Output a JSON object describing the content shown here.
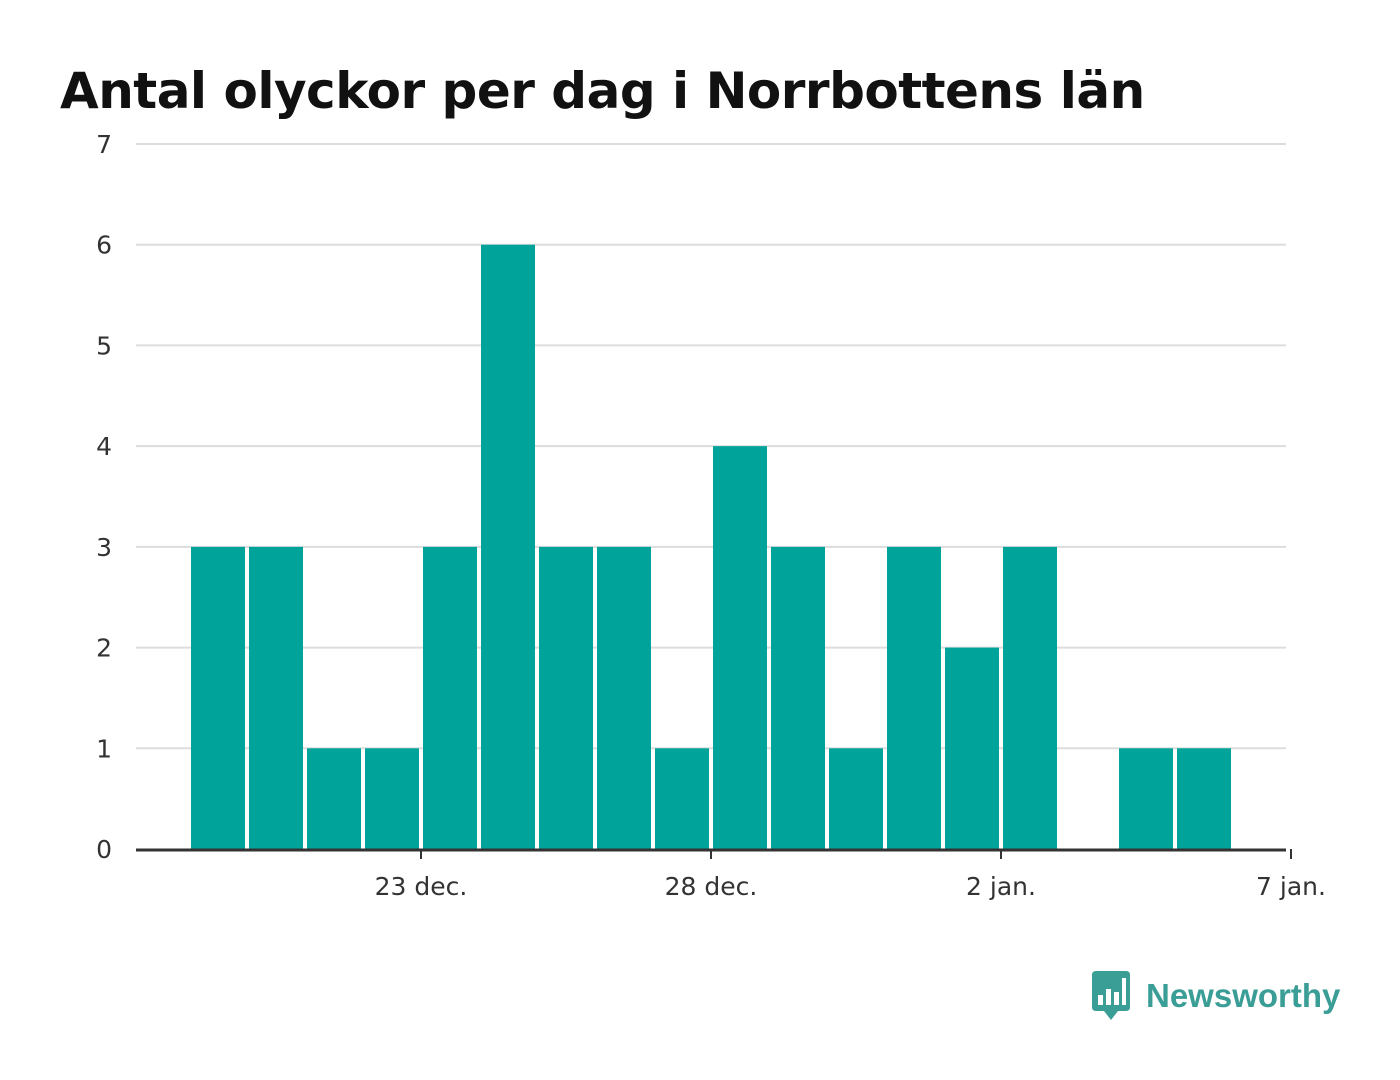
{
  "chart_data": {
    "type": "bar",
    "title": "Antal olyckor per dag i Norrbottens län",
    "x": [
      "2023-12-19",
      "2023-12-20",
      "2023-12-21",
      "2023-12-22",
      "2023-12-23",
      "2023-12-24",
      "2023-12-25",
      "2023-12-26",
      "2023-12-27",
      "2023-12-28",
      "2023-12-29",
      "2023-12-30",
      "2023-12-31",
      "2024-01-01",
      "2024-01-02",
      "2024-01-03",
      "2024-01-04",
      "2024-01-05"
    ],
    "values": [
      3,
      3,
      1,
      1,
      3,
      6,
      3,
      3,
      1,
      4,
      3,
      1,
      3,
      2,
      3,
      0,
      1,
      1
    ],
    "ylim": [
      0,
      7
    ],
    "yticks": [
      "0",
      "1",
      "2",
      "3",
      "4",
      "5",
      "6",
      "7"
    ],
    "xticks": [
      {
        "date": "2023-12-23",
        "label": "23 dec."
      },
      {
        "date": "2023-12-28",
        "label": "28 dec."
      },
      {
        "date": "2024-01-02",
        "label": "2 jan."
      },
      {
        "date": "2024-01-07",
        "label": "7 jan."
      }
    ],
    "xlabel": "",
    "ylabel": "",
    "grid": true,
    "bar_color": "#00a39a"
  },
  "brand": {
    "name": "Newsworthy",
    "logo_icon": "bar-chart-speech-bubble-icon",
    "color": "#3a9e96"
  }
}
